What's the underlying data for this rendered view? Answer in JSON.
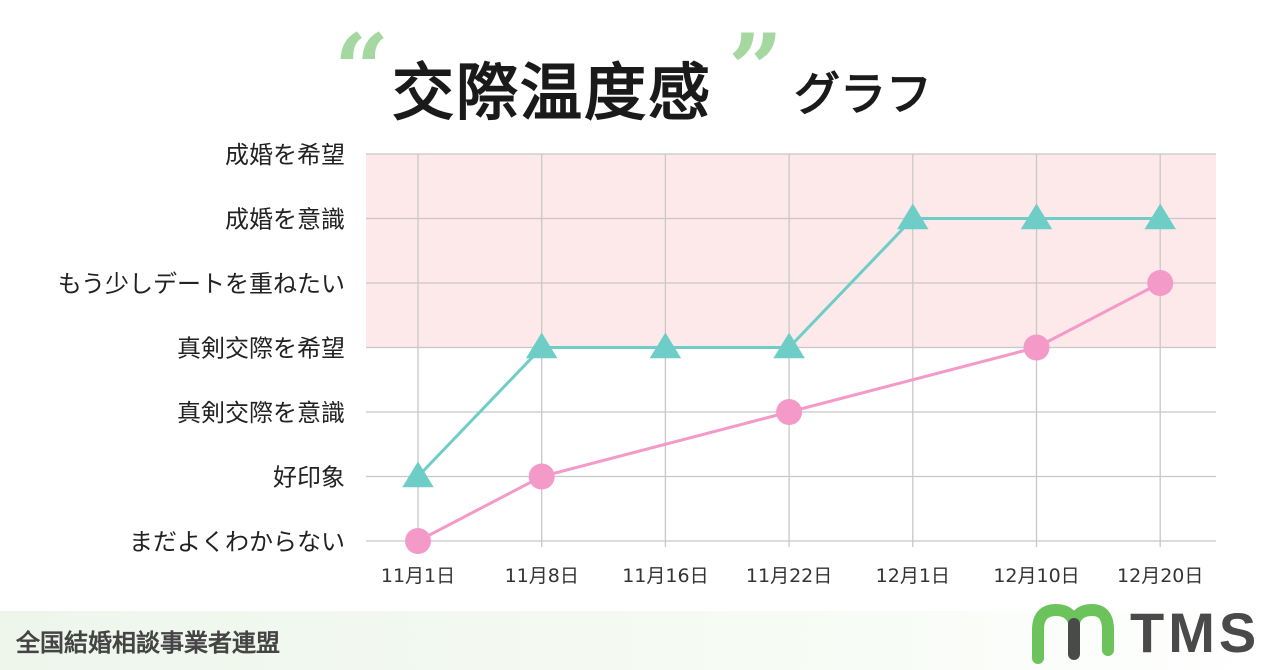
{
  "header": {
    "quote_open": "“",
    "title": "交際温度感",
    "quote_close": "”",
    "subtitle": "グラフ"
  },
  "footer": {
    "organization": "全国結婚相談事業者連盟",
    "logo_text": "TMS"
  },
  "colors": {
    "teal": "#6ecdc7",
    "pink": "#f39ac8",
    "band": "#fde9e9",
    "quote": "#a5d8a0",
    "logo_mark": "#6cc25b"
  },
  "chart_data": {
    "type": "line",
    "categories": [
      "11月1日",
      "11月8日",
      "11月16日",
      "11月22日",
      "12月1日",
      "12月10日",
      "12月20日"
    ],
    "y_levels": [
      "まだよくわからない",
      "好印象",
      "真剣交際を意識",
      "真剣交際を希望",
      "もう少しデートを重ねたい",
      "成婚を意識",
      "成婚を希望"
    ],
    "highlight_band": {
      "from_level": 3,
      "to_level": 6,
      "color": "#fde9e9"
    },
    "grid": true,
    "series": [
      {
        "marker": "triangle",
        "color": "#6ecdc7",
        "points": [
          [
            0,
            1
          ],
          [
            1,
            3
          ],
          [
            2,
            3
          ],
          [
            3,
            3
          ],
          [
            4,
            5
          ],
          [
            5,
            5
          ],
          [
            6,
            5
          ]
        ]
      },
      {
        "marker": "circle",
        "color": "#f39ac8",
        "points": [
          [
            0,
            0
          ],
          [
            1,
            1
          ],
          [
            3,
            2
          ],
          [
            5,
            3
          ],
          [
            6,
            4
          ]
        ]
      }
    ]
  }
}
